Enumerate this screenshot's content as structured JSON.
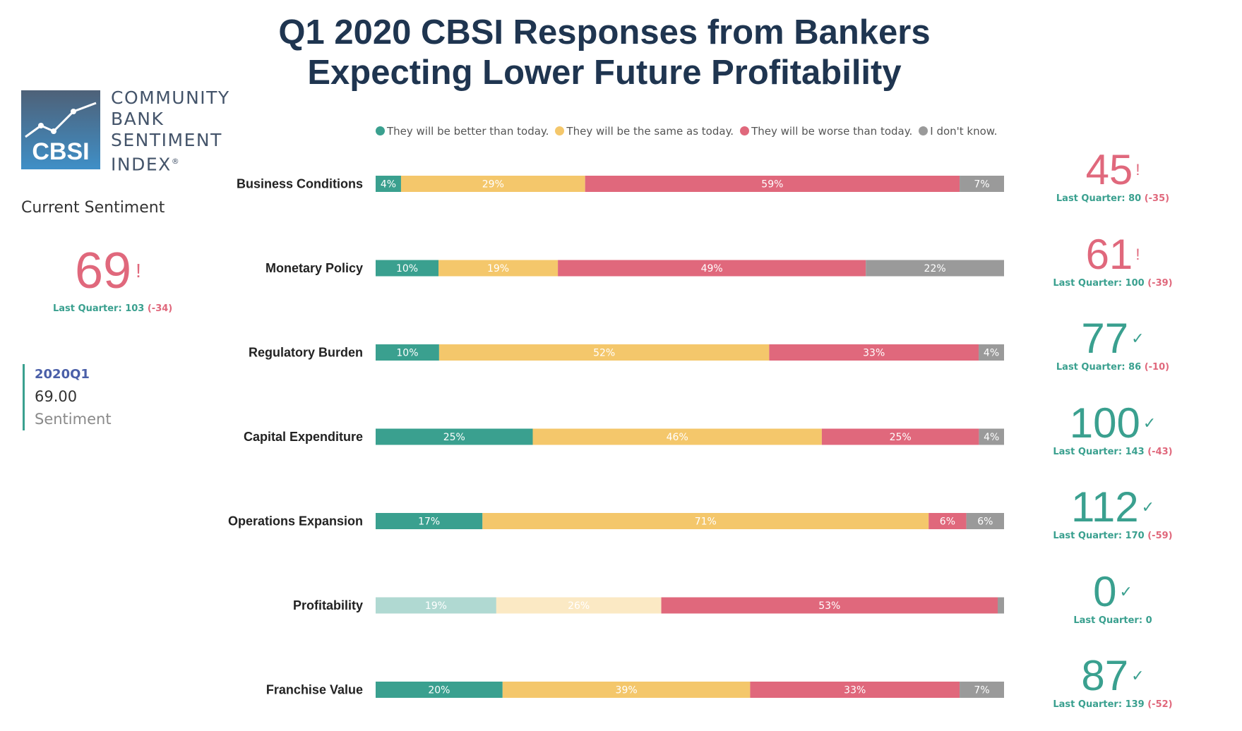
{
  "title": {
    "line1": "Q1 2020 CBSI Responses from Bankers",
    "line2": "Expecting Lower Future Profitability"
  },
  "logo": {
    "abbrev": "CBSI",
    "line1": "COMMUNITY",
    "line2": "BANK",
    "line3": "SENTIMENT",
    "line4": "INDEX",
    "mark": "®"
  },
  "current": {
    "label": "Current Sentiment",
    "value": "69",
    "indicator": "!",
    "last_quarter_text": "Last Quarter: 103",
    "change_text": "(-34)",
    "status_color": "#e0687c"
  },
  "card": {
    "period": "2020Q1",
    "value": "69.00",
    "label": "Sentiment"
  },
  "colors": {
    "better": "#3aa08f",
    "same": "#f4c76b",
    "worse": "#e0687c",
    "dontknow": "#9a9a9a",
    "good": "#3aa08f",
    "bad": "#e0687c"
  },
  "chart_data": {
    "type": "bar",
    "stacked": true,
    "orientation": "horizontal",
    "legend": "top",
    "legend_entries": [
      "They will be better than today.",
      "They will be the same as today.",
      "They will be worse than today.",
      "I don't know."
    ],
    "categories": [
      "Business Conditions",
      "Monetary Policy",
      "Regulatory Burden",
      "Capital Expenditure",
      "Operations Expansion",
      "Profitability",
      "Franchise Value"
    ],
    "series": [
      {
        "name": "They will be better than today.",
        "values": [
          4,
          10,
          10,
          25,
          17,
          19,
          20
        ]
      },
      {
        "name": "They will be the same as today.",
        "values": [
          29,
          19,
          52,
          46,
          71,
          26,
          39
        ]
      },
      {
        "name": "They will be worse than today.",
        "values": [
          59,
          49,
          33,
          25,
          6,
          53,
          33
        ]
      },
      {
        "name": "I don't know.",
        "values": [
          7,
          22,
          4,
          4,
          6,
          1,
          7
        ]
      }
    ],
    "data_labels": [
      [
        "4%",
        "29%",
        "59%",
        "7%"
      ],
      [
        "10%",
        "19%",
        "49%",
        "22%"
      ],
      [
        "10%",
        "52%",
        "33%",
        "4%"
      ],
      [
        "25%",
        "46%",
        "25%",
        "4%"
      ],
      [
        "17%",
        "71%",
        "6%",
        "6%"
      ],
      [
        "19%",
        "26%",
        "53%",
        ""
      ],
      [
        "20%",
        "39%",
        "33%",
        "7%"
      ]
    ],
    "highlighted_category": "Profitability",
    "kpis": [
      {
        "value": "45",
        "indicator": "!",
        "status": "bad",
        "last_quarter": "Last Quarter: 80",
        "change": "(-35)"
      },
      {
        "value": "61",
        "indicator": "!",
        "status": "bad",
        "last_quarter": "Last Quarter: 100",
        "change": "(-39)"
      },
      {
        "value": "77",
        "indicator": "✓",
        "status": "good",
        "last_quarter": "Last Quarter: 86",
        "change": "(-10)"
      },
      {
        "value": "100",
        "indicator": "✓",
        "status": "good",
        "last_quarter": "Last Quarter: 143",
        "change": "(-43)"
      },
      {
        "value": "112",
        "indicator": "✓",
        "status": "good",
        "last_quarter": "Last Quarter: 170",
        "change": "(-59)"
      },
      {
        "value": "0",
        "indicator": "✓",
        "status": "good",
        "last_quarter": "Last Quarter: 0",
        "change": ""
      },
      {
        "value": "87",
        "indicator": "✓",
        "status": "good",
        "last_quarter": "Last Quarter: 139",
        "change": "(-52)"
      }
    ]
  }
}
